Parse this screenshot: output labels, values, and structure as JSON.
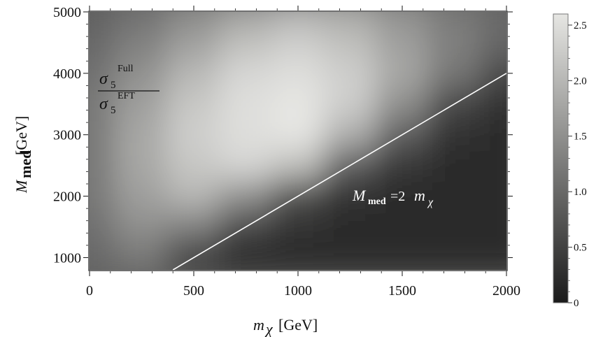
{
  "chart_data": {
    "type": "heatmap",
    "xlabel": {
      "main": "m",
      "sub": "χ",
      "unit": "[GeV]"
    },
    "ylabel": {
      "main": "M",
      "sub": "med",
      "unit": "[GeV]"
    },
    "xlim": [
      0,
      2000
    ],
    "ylim": [
      800,
      5000
    ],
    "xticks": [
      "0",
      "500",
      "1000",
      "1500",
      "2000"
    ],
    "xtick_values": [
      0,
      500,
      1000,
      1500,
      2000
    ],
    "yticks": [
      "1000",
      "2000",
      "3000",
      "4000",
      "5000"
    ],
    "ytick_values": [
      1000,
      2000,
      3000,
      4000,
      5000
    ],
    "colorbar": {
      "range": [
        0,
        2.6
      ],
      "ticks": [
        "0",
        "0.5",
        "1.0",
        "1.5",
        "2.0",
        "2.5"
      ],
      "tick_values": [
        0,
        0.5,
        1.0,
        1.5,
        2.0,
        2.5
      ],
      "colormap": [
        "#1a1a1a",
        "#e6e6e3"
      ]
    },
    "ratio_label": {
      "num_main": "σ",
      "num_sub": "5",
      "num_sup": "Full",
      "den_main": "σ",
      "den_sub": "5",
      "den_sup": "EFT"
    },
    "line": {
      "label_lhs_main": "M",
      "label_lhs_sub": "med",
      "label_rhs_coef": "=2",
      "label_rhs_main": "m",
      "label_rhs_sub": "χ",
      "color": "#ffffff",
      "points": [
        [
          400,
          800
        ],
        [
          2000,
          4000
        ]
      ]
    },
    "field_samples": {
      "description_values": "ratio value sampled on a coarse grid (x in GeV, y in GeV)",
      "x": [
        0,
        250,
        500,
        750,
        1000,
        1250,
        1500,
        1750,
        2000
      ],
      "y": [
        5000,
        4500,
        4000,
        3500,
        3000,
        2500,
        2000,
        1500,
        1000
      ],
      "z": [
        [
          0.9,
          1.1,
          1.4,
          1.7,
          1.9,
          1.8,
          1.5,
          1.2,
          1.0
        ],
        [
          1.0,
          1.3,
          1.7,
          2.1,
          2.3,
          2.1,
          1.7,
          1.3,
          1.0
        ],
        [
          1.1,
          1.5,
          2.0,
          2.4,
          2.5,
          2.3,
          1.8,
          1.2,
          0.6
        ],
        [
          1.2,
          1.7,
          2.2,
          2.5,
          2.6,
          2.3,
          1.5,
          0.6,
          0.3
        ],
        [
          1.2,
          1.8,
          2.3,
          2.5,
          2.6,
          1.9,
          0.9,
          0.3,
          0.2
        ],
        [
          1.2,
          1.8,
          2.2,
          2.4,
          2.1,
          0.9,
          0.4,
          0.2,
          0.2
        ],
        [
          1.2,
          1.7,
          2.0,
          1.5,
          0.7,
          0.3,
          0.2,
          0.2,
          0.2
        ],
        [
          1.1,
          1.5,
          1.3,
          0.6,
          0.3,
          0.2,
          0.2,
          0.2,
          0.2
        ],
        [
          1.0,
          1.2,
          0.5,
          0.2,
          0.2,
          0.2,
          0.2,
          0.2,
          0.2
        ]
      ]
    }
  }
}
